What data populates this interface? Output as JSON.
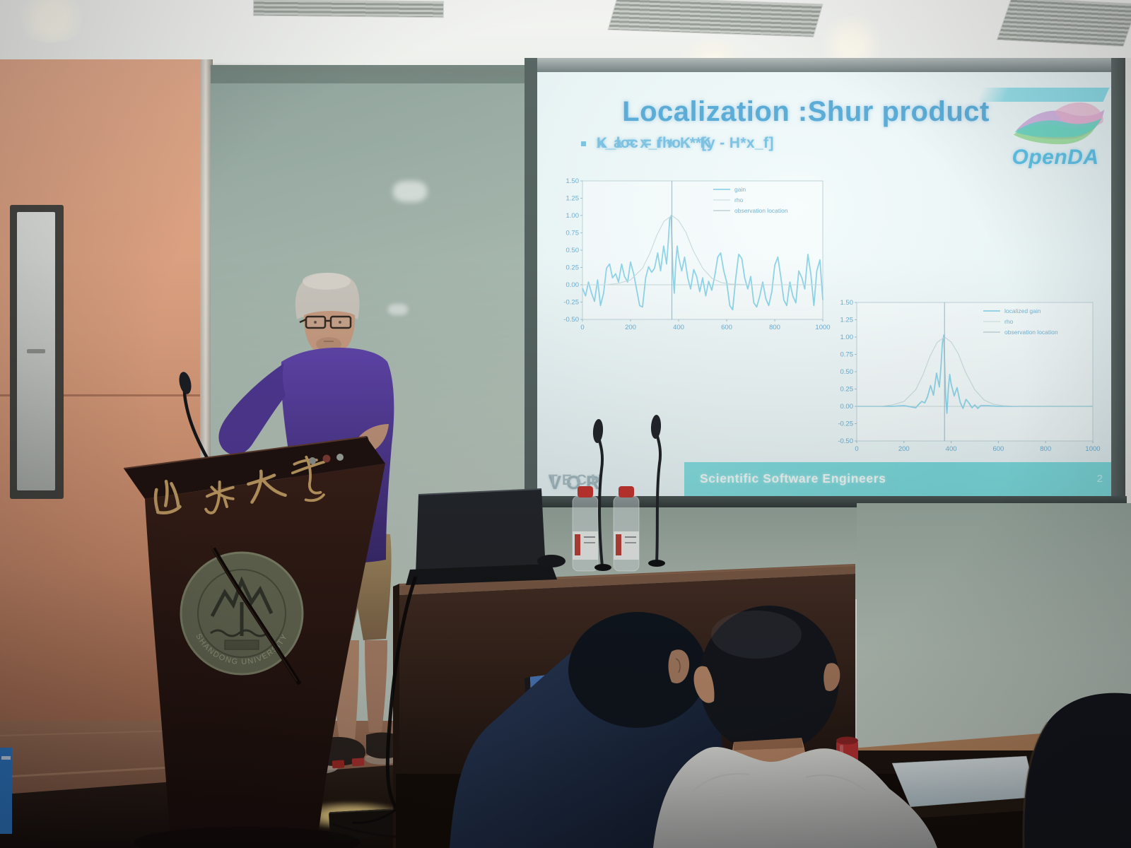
{
  "slide": {
    "title": "Localization :Shur product",
    "bullets": [
      "K_loc = rho .* K",
      "x_a = x_f + K *[y - H*x_f]"
    ],
    "logo_text": "OpenDA",
    "footer": {
      "brand_primary": "VOR",
      "brand_secondary": "TECH",
      "tagline": "Scientific Software Engineers",
      "page_number": "2"
    },
    "accent_color": "#58abd6",
    "band_color": "#74d6d8",
    "logo_colors": [
      "#66d6c8",
      "#8cd88a",
      "#caa4da",
      "#e8b0cc"
    ]
  },
  "podium": {
    "calligraphy": "山东大学",
    "emblem_ring_text": "SHANDONG UNIVERSITY"
  },
  "chart_data": [
    {
      "type": "line",
      "title": "",
      "xlabel": "",
      "ylabel": "",
      "xlim": [
        0,
        1000
      ],
      "ylim": [
        -0.5,
        1.5
      ],
      "xticks": [
        0,
        200,
        400,
        600,
        800,
        1000
      ],
      "yticks": [
        1.5,
        1.25,
        1.0,
        0.75,
        0.5,
        0.25,
        0.0,
        -0.25,
        -0.5
      ],
      "grid": false,
      "legend_position": "upper right",
      "series": [
        {
          "name": "gain",
          "color": "#8fd4e8",
          "points": [
            [
              0,
              -0.05
            ],
            [
              13,
              -0.16
            ],
            [
              25,
              0.04
            ],
            [
              38,
              -0.12
            ],
            [
              50,
              -0.24
            ],
            [
              63,
              0.07
            ],
            [
              75,
              -0.3
            ],
            [
              88,
              -0.12
            ],
            [
              100,
              0.24
            ],
            [
              113,
              0.3
            ],
            [
              125,
              0.1
            ],
            [
              138,
              0.16
            ],
            [
              150,
              0.04
            ],
            [
              163,
              0.3
            ],
            [
              175,
              0.12
            ],
            [
              188,
              0.04
            ],
            [
              200,
              0.33
            ],
            [
              213,
              0.16
            ],
            [
              225,
              -0.06
            ],
            [
              238,
              -0.3
            ],
            [
              250,
              -0.32
            ],
            [
              263,
              0.1
            ],
            [
              275,
              0.26
            ],
            [
              288,
              0.18
            ],
            [
              300,
              0.24
            ],
            [
              313,
              0.46
            ],
            [
              325,
              0.2
            ],
            [
              338,
              0.56
            ],
            [
              350,
              0.3
            ],
            [
              357,
              0.62
            ],
            [
              363,
              0.95
            ],
            [
              369,
              1.0
            ],
            [
              376,
              0.2
            ],
            [
              382,
              -0.12
            ],
            [
              388,
              0.3
            ],
            [
              394,
              0.56
            ],
            [
              400,
              0.4
            ],
            [
              413,
              0.2
            ],
            [
              425,
              0.4
            ],
            [
              438,
              0.1
            ],
            [
              450,
              -0.06
            ],
            [
              463,
              0.22
            ],
            [
              475,
              0.12
            ],
            [
              488,
              -0.1
            ],
            [
              500,
              0.1
            ],
            [
              513,
              -0.16
            ],
            [
              525,
              0.05
            ],
            [
              538,
              -0.08
            ],
            [
              550,
              0.12
            ],
            [
              563,
              0.4
            ],
            [
              575,
              0.46
            ],
            [
              588,
              0.2
            ],
            [
              600,
              0.04
            ],
            [
              613,
              -0.3
            ],
            [
              625,
              -0.36
            ],
            [
              638,
              0.1
            ],
            [
              650,
              0.44
            ],
            [
              663,
              0.38
            ],
            [
              675,
              0.1
            ],
            [
              688,
              -0.06
            ],
            [
              700,
              0.12
            ],
            [
              713,
              -0.26
            ],
            [
              725,
              -0.32
            ],
            [
              738,
              -0.16
            ],
            [
              750,
              0.04
            ],
            [
              763,
              -0.2
            ],
            [
              775,
              -0.3
            ],
            [
              788,
              -0.1
            ],
            [
              800,
              0.28
            ],
            [
              813,
              0.4
            ],
            [
              825,
              0.12
            ],
            [
              838,
              -0.22
            ],
            [
              850,
              -0.3
            ],
            [
              863,
              0.04
            ],
            [
              875,
              -0.16
            ],
            [
              888,
              -0.26
            ],
            [
              900,
              0.2
            ],
            [
              913,
              0.1
            ],
            [
              925,
              -0.06
            ],
            [
              938,
              0.44
            ],
            [
              950,
              0.16
            ],
            [
              963,
              -0.3
            ],
            [
              975,
              0.2
            ],
            [
              988,
              0.36
            ],
            [
              1000,
              -0.22
            ]
          ]
        },
        {
          "name": "rho",
          "color": "#c6dadc",
          "points": [
            [
              0,
              0
            ],
            [
              100,
              0
            ],
            [
              150,
              0.02
            ],
            [
              200,
              0.07
            ],
            [
              250,
              0.24
            ],
            [
              280,
              0.45
            ],
            [
              310,
              0.72
            ],
            [
              340,
              0.92
            ],
            [
              372,
              1.0
            ],
            [
              400,
              0.93
            ],
            [
              430,
              0.76
            ],
            [
              460,
              0.5
            ],
            [
              500,
              0.24
            ],
            [
              540,
              0.09
            ],
            [
              580,
              0.03
            ],
            [
              620,
              0.01
            ],
            [
              700,
              0
            ],
            [
              800,
              0
            ],
            [
              1000,
              0
            ]
          ]
        },
        {
          "name": "observation location",
          "color": "#a4bcc6",
          "points": [
            [
              372,
              -0.5
            ],
            [
              372,
              1.5
            ]
          ]
        }
      ]
    },
    {
      "type": "line",
      "title": "",
      "xlabel": "",
      "ylabel": "",
      "xlim": [
        0,
        1000
      ],
      "ylim": [
        -0.5,
        1.5
      ],
      "xticks": [
        0,
        200,
        400,
        600,
        800,
        1000
      ],
      "yticks": [
        1.5,
        1.25,
        1.0,
        0.75,
        0.5,
        0.25,
        0.0,
        -0.25,
        -0.5
      ],
      "grid": false,
      "legend_position": "upper right",
      "series": [
        {
          "name": "localized gain",
          "color": "#8fd4e8",
          "points": [
            [
              0,
              0
            ],
            [
              150,
              0
            ],
            [
              200,
              0.01
            ],
            [
              250,
              -0.02
            ],
            [
              263,
              0.03
            ],
            [
              275,
              0.07
            ],
            [
              288,
              0.05
            ],
            [
              300,
              0.14
            ],
            [
              313,
              0.3
            ],
            [
              325,
              0.16
            ],
            [
              338,
              0.48
            ],
            [
              350,
              0.28
            ],
            [
              357,
              0.58
            ],
            [
              363,
              0.92
            ],
            [
              369,
              1.03
            ],
            [
              376,
              0.18
            ],
            [
              382,
              -0.1
            ],
            [
              388,
              0.26
            ],
            [
              394,
              0.46
            ],
            [
              400,
              0.32
            ],
            [
              413,
              0.15
            ],
            [
              425,
              0.27
            ],
            [
              438,
              0.06
            ],
            [
              450,
              -0.03
            ],
            [
              463,
              0.1
            ],
            [
              475,
              0.05
            ],
            [
              488,
              -0.02
            ],
            [
              500,
              0.02
            ],
            [
              513,
              -0.03
            ],
            [
              525,
              0.01
            ],
            [
              550,
              0.01
            ],
            [
              600,
              0
            ],
            [
              700,
              0
            ],
            [
              1000,
              0
            ]
          ]
        },
        {
          "name": "rho",
          "color": "#c6dadc",
          "points": [
            [
              0,
              0
            ],
            [
              100,
              0
            ],
            [
              150,
              0.02
            ],
            [
              200,
              0.07
            ],
            [
              250,
              0.24
            ],
            [
              280,
              0.45
            ],
            [
              310,
              0.72
            ],
            [
              340,
              0.92
            ],
            [
              372,
              1.0
            ],
            [
              400,
              0.93
            ],
            [
              430,
              0.76
            ],
            [
              460,
              0.5
            ],
            [
              500,
              0.24
            ],
            [
              540,
              0.09
            ],
            [
              580,
              0.03
            ],
            [
              620,
              0.01
            ],
            [
              700,
              0
            ],
            [
              800,
              0
            ],
            [
              1000,
              0
            ]
          ]
        },
        {
          "name": "observation location",
          "color": "#a4bcc6",
          "points": [
            [
              372,
              -0.5
            ],
            [
              372,
              1.5
            ]
          ]
        }
      ]
    }
  ]
}
